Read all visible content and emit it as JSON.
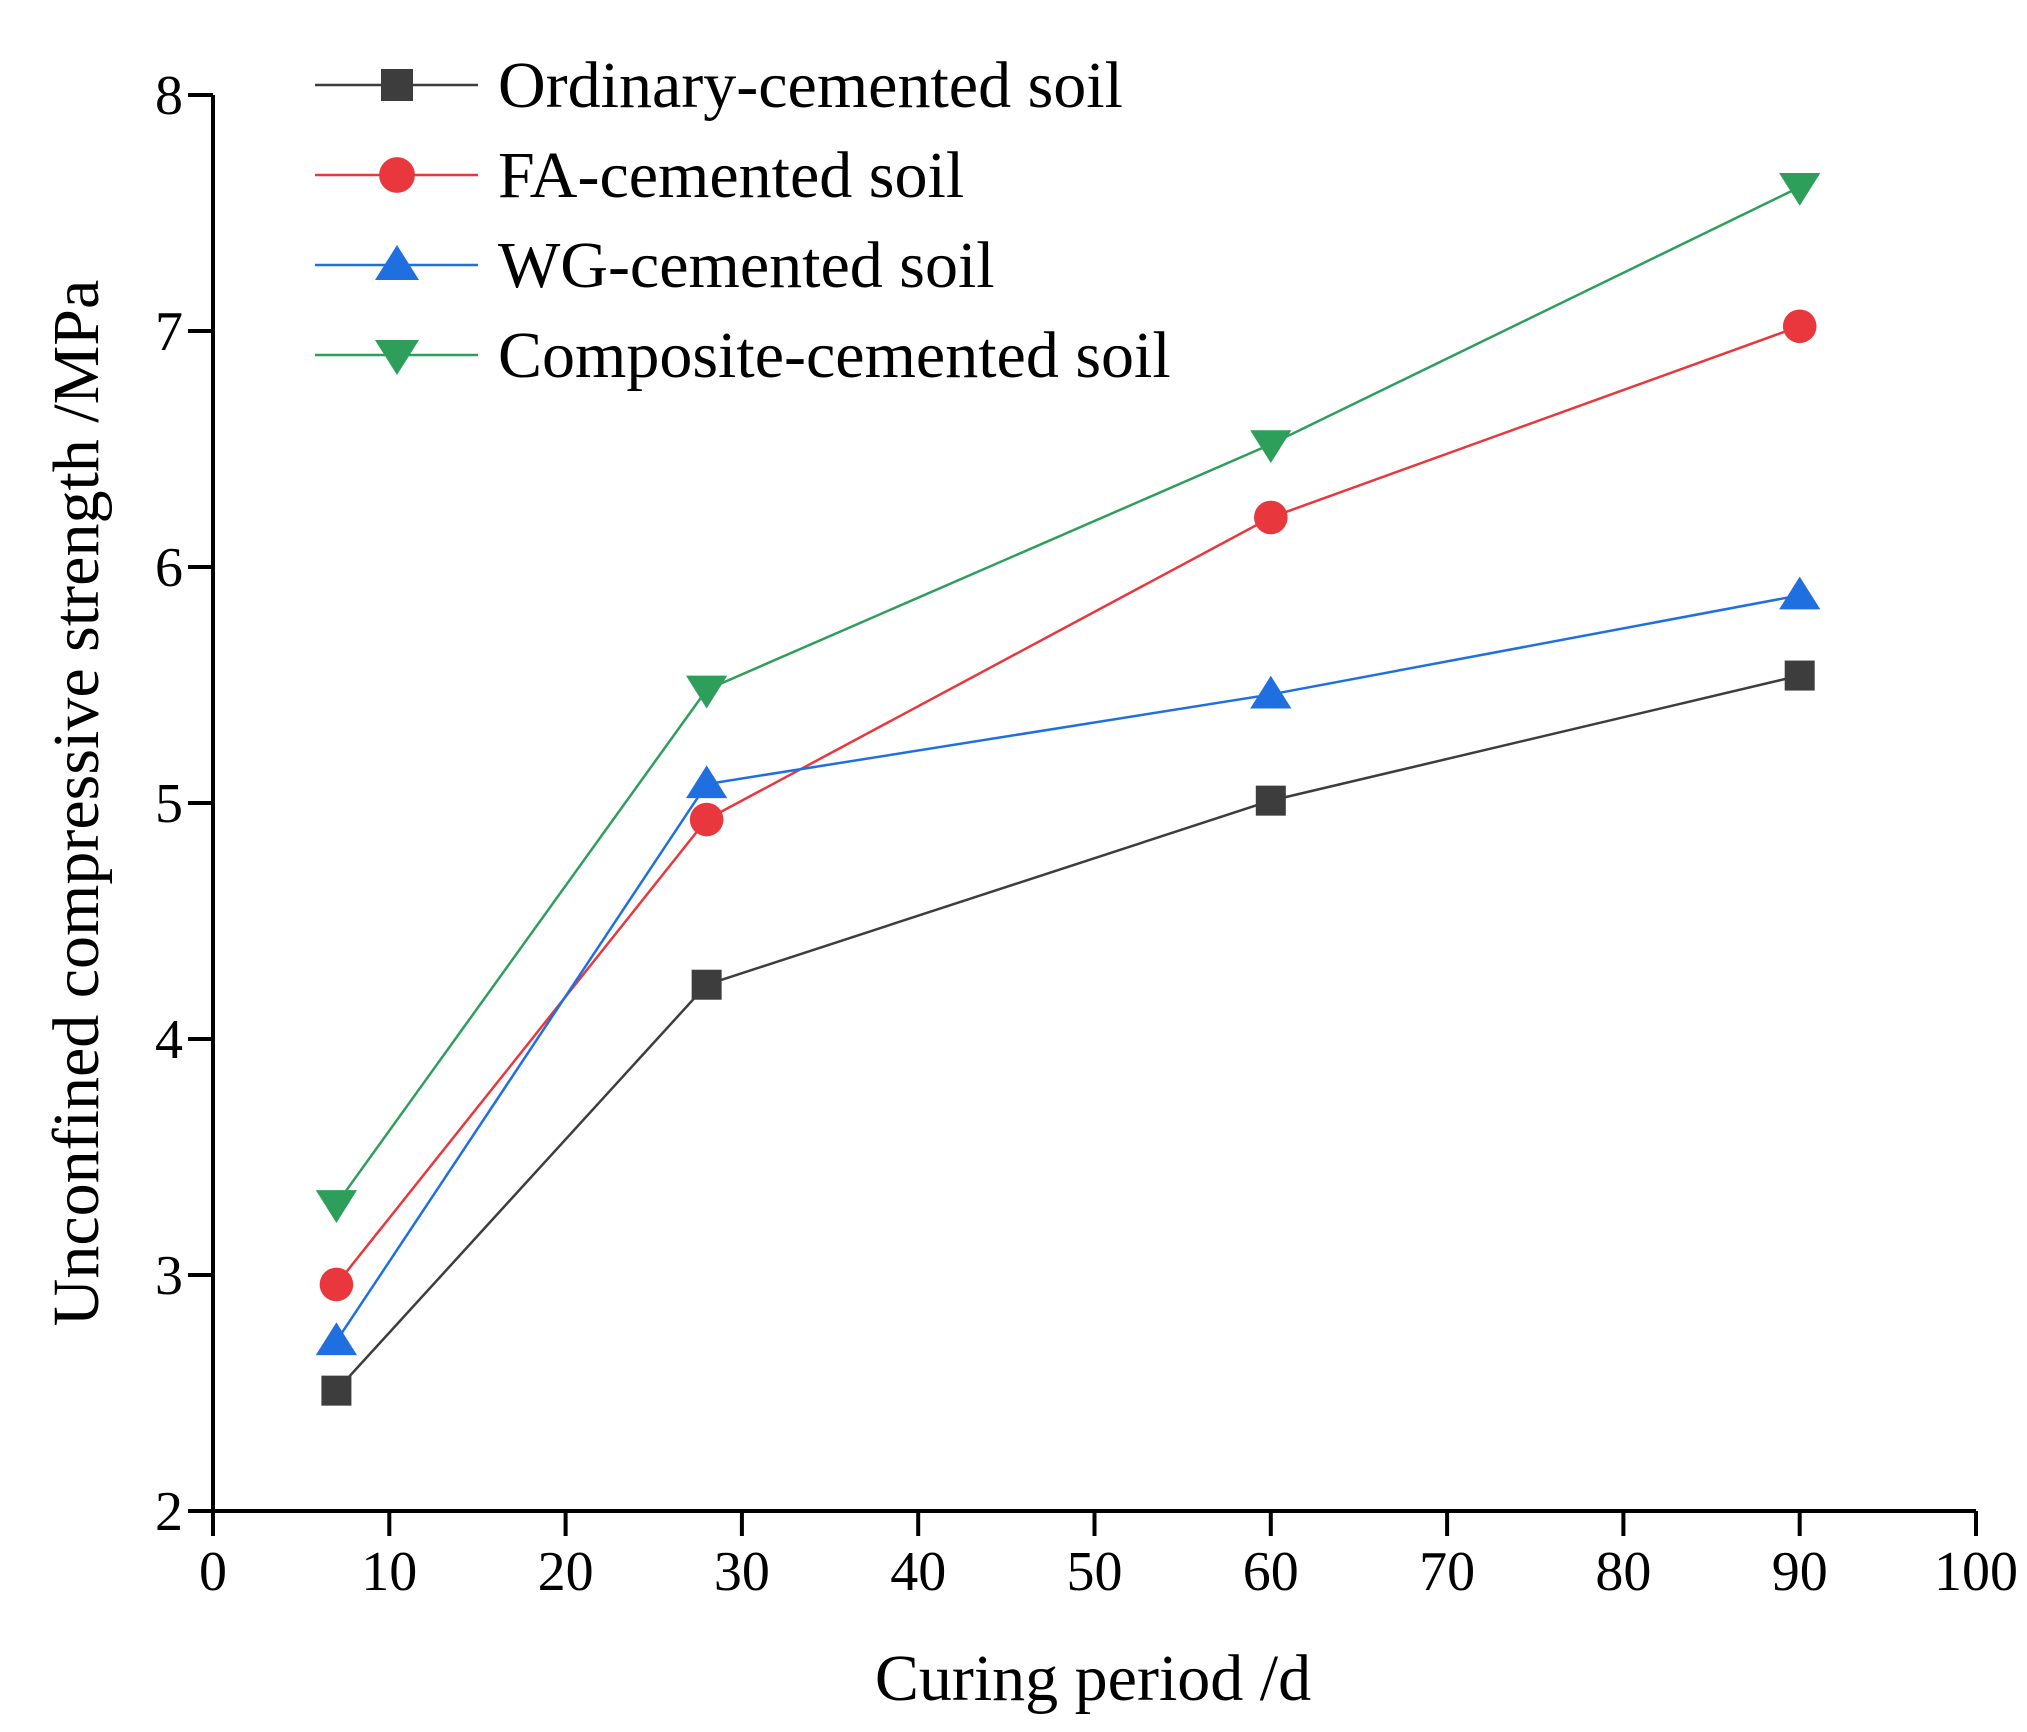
{
  "chart_data": {
    "type": "line",
    "title": "",
    "xlabel": "Curing period /d",
    "ylabel": "Unconfined compressive strength /MPa",
    "xlim": [
      0,
      100
    ],
    "ylim": [
      2,
      8
    ],
    "xticks": [
      "0",
      "10",
      "20",
      "30",
      "40",
      "50",
      "60",
      "70",
      "80",
      "90",
      "100"
    ],
    "yticks": [
      "2",
      "3",
      "4",
      "5",
      "6",
      "7",
      "8"
    ],
    "grid": false,
    "legend_position": "top-left",
    "x": [
      7,
      28,
      60,
      90
    ],
    "series": [
      {
        "name": "Ordinary-cemented soil",
        "marker": "square",
        "color": "#3d3d3d",
        "values": [
          2.51,
          4.23,
          5.01,
          5.54
        ]
      },
      {
        "name": "FA-cemented soil",
        "marker": "circle",
        "color": "#e8383d",
        "values": [
          2.96,
          4.93,
          6.21,
          7.02
        ]
      },
      {
        "name": "WG-cemented soil",
        "marker": "triangle-up",
        "color": "#1f6fe0",
        "values": [
          2.72,
          5.08,
          5.46,
          5.88
        ]
      },
      {
        "name": "Composite-cemented soil",
        "marker": "triangle-down",
        "color": "#2e9e5b",
        "values": [
          3.3,
          5.48,
          6.52,
          7.61
        ]
      }
    ]
  }
}
